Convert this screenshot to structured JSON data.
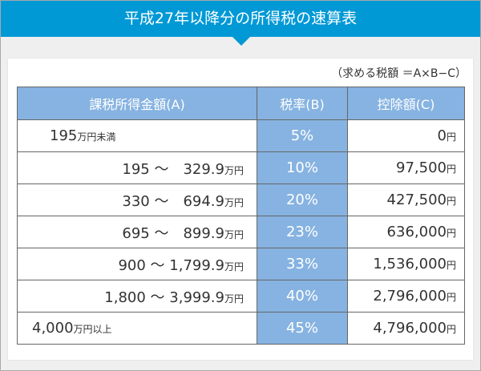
{
  "title": "平成27年以降分の所得税の速算表",
  "note": "（求める税額 ＝A×B−C）",
  "headers": [
    "課税所得金額(A)",
    "税率(B)",
    "控除額(C)"
  ],
  "rows": [
    {
      "amount": "195",
      "amount_unit": "万円未満",
      "rate": "5%",
      "deduction": "0",
      "deduction_unit": "円"
    },
    {
      "amount": "195 ～　329.9",
      "amount_unit": "万円",
      "rate": "10%",
      "deduction": "97,500",
      "deduction_unit": "円"
    },
    {
      "amount": "330 ～　694.9",
      "amount_unit": "万円",
      "rate": "20%",
      "deduction": "427,500",
      "deduction_unit": "円"
    },
    {
      "amount": "695 ～　899.9",
      "amount_unit": "万円",
      "rate": "23%",
      "deduction": "636,000",
      "deduction_unit": "円"
    },
    {
      "amount": "900 ～ 1,799.9",
      "amount_unit": "万円",
      "rate": "33%",
      "deduction": "1,536,000",
      "deduction_unit": "円"
    },
    {
      "amount": "1,800 ～ 3,999.9",
      "amount_unit": "万円",
      "rate": "40%",
      "deduction": "2,796,000",
      "deduction_unit": "円"
    },
    {
      "amount": "4,000",
      "amount_unit": "万円以上",
      "rate": "45%",
      "deduction": "4,796,000",
      "deduction_unit": "円"
    }
  ]
}
